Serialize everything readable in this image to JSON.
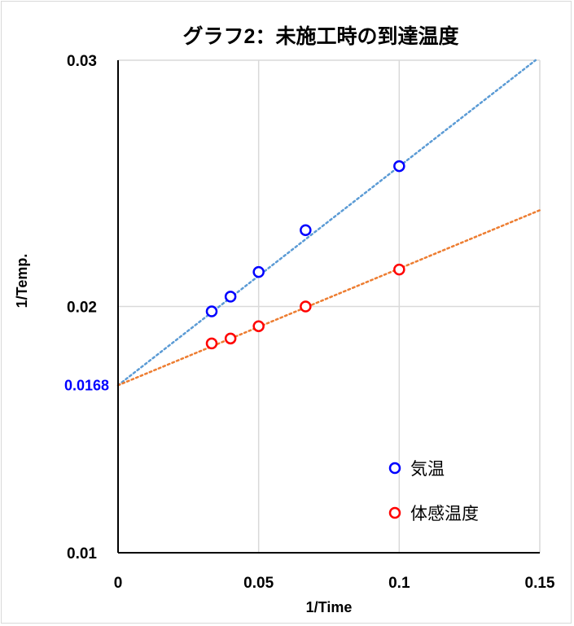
{
  "chart_data": {
    "type": "scatter",
    "title": "グラフ2：未施工時の到達温度",
    "xlabel": "1/Time",
    "ylabel": "1/Temp.",
    "xlim": [
      0,
      0.15
    ],
    "ylim": [
      0.01,
      0.03
    ],
    "x_ticks": [
      "0",
      "0.05",
      "0.1",
      "0.15"
    ],
    "y_ticks": [
      "0.01",
      "0.02",
      "0.03"
    ],
    "grid": true,
    "legend_position": "bottom-right",
    "annotations": [
      {
        "text": "0.0168",
        "y": 0.0168,
        "color": "#0000ff"
      }
    ],
    "series": [
      {
        "name": "気温",
        "color": "#0000ff",
        "trend_color": "#5b9bd5",
        "trendline": {
          "intercept": 0.0168,
          "slope": 0.0889
        },
        "points": [
          {
            "x": 0.0333,
            "y": 0.0198
          },
          {
            "x": 0.04,
            "y": 0.0204
          },
          {
            "x": 0.05,
            "y": 0.0214
          },
          {
            "x": 0.0667,
            "y": 0.0231
          },
          {
            "x": 0.1,
            "y": 0.0257
          }
        ]
      },
      {
        "name": "体感温度",
        "color": "#ff0000",
        "trend_color": "#ed7d31",
        "trendline": {
          "intercept": 0.0168,
          "slope": 0.0474
        },
        "points": [
          {
            "x": 0.0333,
            "y": 0.0185
          },
          {
            "x": 0.04,
            "y": 0.0187
          },
          {
            "x": 0.05,
            "y": 0.0192
          },
          {
            "x": 0.0667,
            "y": 0.02
          },
          {
            "x": 0.1,
            "y": 0.0215
          }
        ]
      }
    ]
  }
}
